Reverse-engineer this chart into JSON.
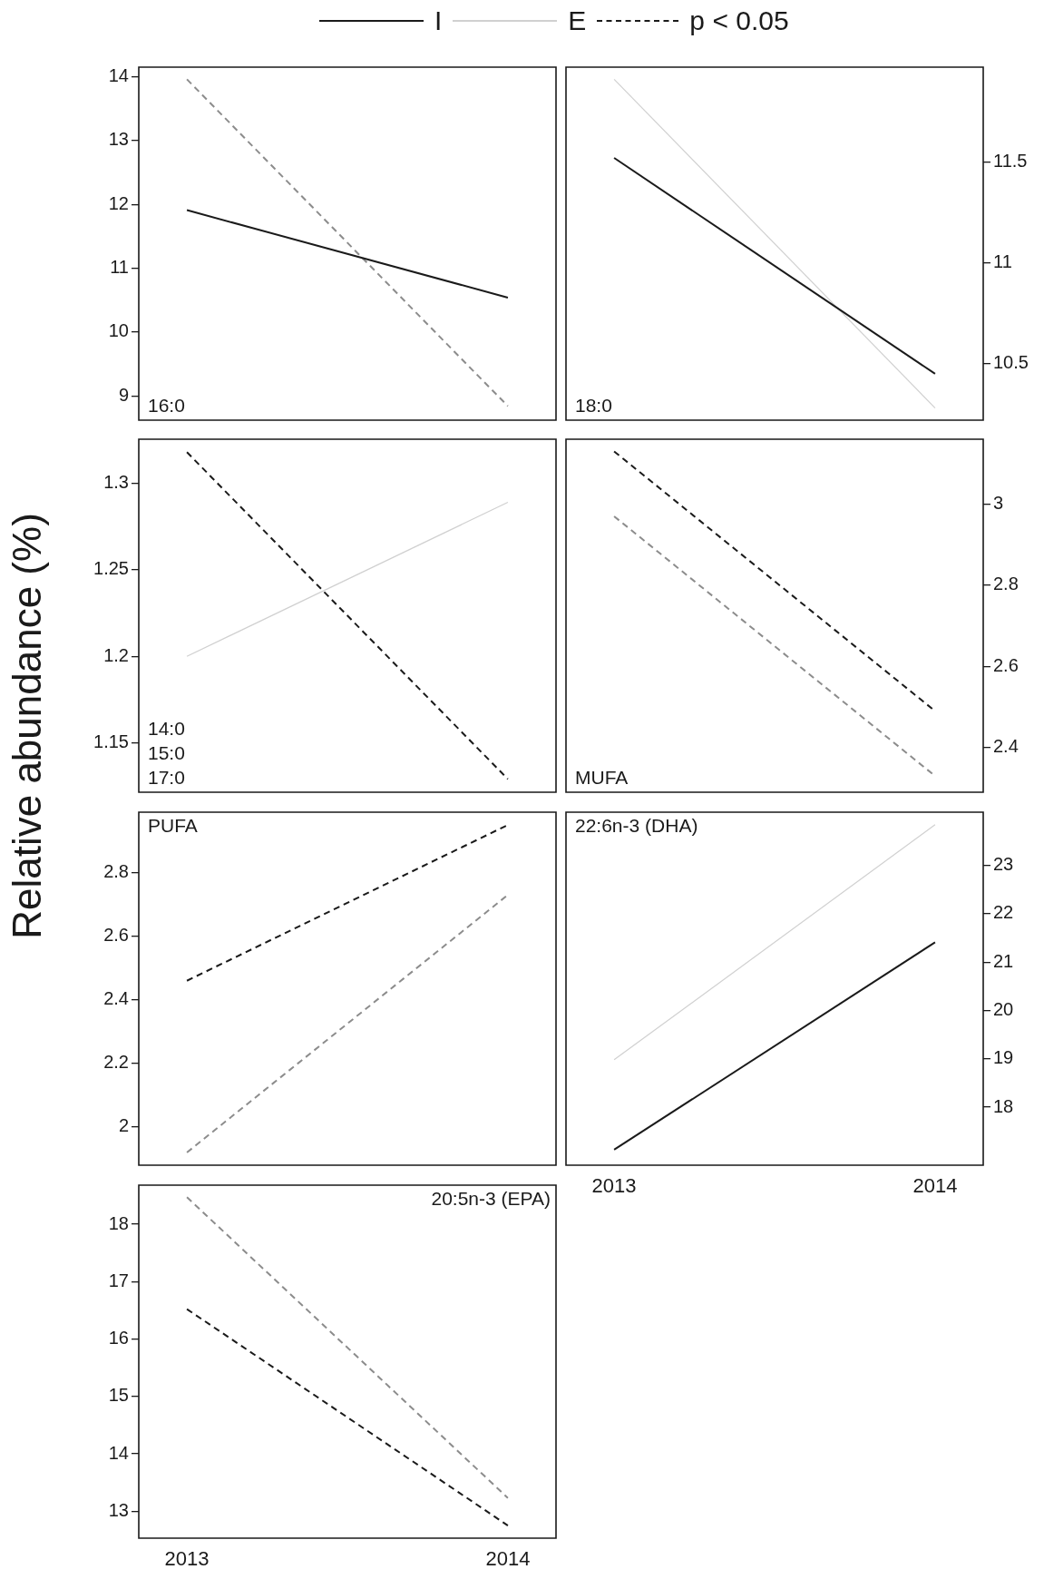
{
  "chart_data": [
    {
      "type": "line",
      "ylabel": "Relative abundance (%)",
      "categories": [
        "2013",
        "2014"
      ],
      "ylim": [
        8.62,
        14.15
      ],
      "yticks": [
        9,
        10,
        11,
        12,
        13,
        14
      ],
      "tick_labels": "y",
      "annotations": [
        "16:0"
      ],
      "series": [
        {
          "color": "#1a1a1a",
          "line_style": "solid",
          "values": [
            11.91,
            10.54
          ]
        },
        {
          "color": "#8c8c8c",
          "line_style": "dashed",
          "values": [
            13.96,
            8.84
          ]
        }
      ]
    },
    {
      "type": "line",
      "categories": [
        "2013",
        "2014"
      ],
      "ylim": [
        10.22,
        11.97
      ],
      "yticks": [
        10.5,
        11,
        11.5
      ],
      "tick_labels": "y",
      "legend": "top",
      "annotations": [
        "18:0",
        "p < 0.05"
      ],
      "series": [
        {
          "name": "I",
          "color": "#1a1a1a",
          "line_style": "solid",
          "values": [
            11.52,
            10.45
          ]
        },
        {
          "name": "E",
          "color": "#d0d0d0",
          "line_style": "solid",
          "values": [
            11.91,
            10.28
          ]
        }
      ]
    },
    {
      "type": "line",
      "categories": [
        "2013",
        "2014"
      ],
      "ylim": [
        1.1214,
        1.3255
      ],
      "yticks": [
        1.15,
        1.2,
        1.25,
        1.3
      ],
      "tick_labels": "y",
      "annotations": [
        "14:0",
        "15:0",
        "17:0"
      ],
      "series": [
        {
          "color": "#1a1a1a",
          "line_style": "dashed",
          "values": [
            1.318,
            1.129
          ]
        },
        {
          "color": "#d0d0d0",
          "line_style": "solid",
          "values": [
            1.2,
            1.289
          ]
        }
      ]
    },
    {
      "type": "line",
      "categories": [
        "2013",
        "2014"
      ],
      "ylim": [
        2.29,
        3.16
      ],
      "yticks": [
        2.4,
        2.6,
        2.8,
        3
      ],
      "tick_labels": "y",
      "annotations": [
        "MUFA"
      ],
      "series": [
        {
          "color": "#1a1a1a",
          "line_style": "dashed",
          "values": [
            3.13,
            2.49
          ]
        },
        {
          "color": "#8c8c8c",
          "line_style": "dashed",
          "values": [
            2.97,
            2.33
          ]
        }
      ]
    },
    {
      "type": "line",
      "categories": [
        "2013",
        "2014"
      ],
      "ylim": [
        1.88,
        2.99
      ],
      "yticks": [
        2,
        2.2,
        2.4,
        2.6,
        2.8
      ],
      "tick_labels": "y",
      "annotations": [
        "PUFA"
      ],
      "series": [
        {
          "color": "#1a1a1a",
          "line_style": "dashed",
          "values": [
            2.46,
            2.95
          ]
        },
        {
          "color": "#8c8c8c",
          "line_style": "dashed",
          "values": [
            1.92,
            2.73
          ]
        }
      ]
    },
    {
      "type": "line",
      "categories": [
        "2013",
        "2014"
      ],
      "ylim": [
        16.8,
        24.1
      ],
      "yticks": [
        18,
        19,
        20,
        21,
        22,
        23
      ],
      "annotations": [
        "22:6n-3 (DHA)"
      ],
      "series": [
        {
          "color": "#1a1a1a",
          "line_style": "solid",
          "values": [
            17.12,
            21.41
          ]
        },
        {
          "color": "#d0d0d0",
          "line_style": "solid",
          "values": [
            18.98,
            23.84
          ]
        }
      ]
    },
    {
      "type": "line",
      "categories": [
        "2013",
        "2014"
      ],
      "ylim": [
        12.53,
        18.68
      ],
      "yticks": [
        13,
        14,
        15,
        16,
        17,
        18
      ],
      "annotations": [
        "20:5n-3 (EPA)"
      ],
      "series": [
        {
          "color": "#1a1a1a",
          "line_style": "dashed",
          "values": [
            16.52,
            12.75
          ]
        },
        {
          "color": "#8c8c8c",
          "line_style": "dashed",
          "values": [
            18.47,
            13.23
          ]
        }
      ]
    }
  ]
}
